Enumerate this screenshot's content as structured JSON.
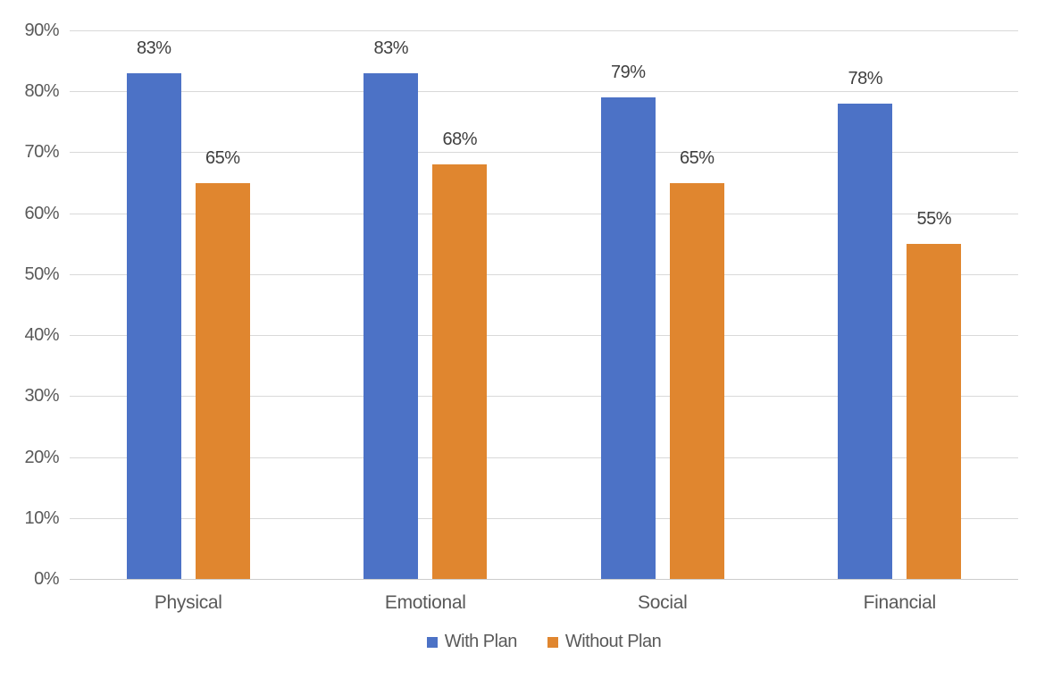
{
  "chart_data": {
    "type": "bar",
    "title": "",
    "xlabel": "",
    "ylabel": "",
    "categories": [
      "Physical",
      "Emotional",
      "Social",
      "Financial"
    ],
    "series": [
      {
        "name": "With Plan",
        "color": "#4C72C6",
        "values": [
          83,
          83,
          79,
          78
        ]
      },
      {
        "name": "Without Plan",
        "color": "#E0862F",
        "values": [
          65,
          68,
          65,
          55
        ]
      }
    ],
    "data_labels": [
      [
        "83%",
        "65%"
      ],
      [
        "83%",
        "68%"
      ],
      [
        "79%",
        "65%"
      ],
      [
        "78%",
        "55%"
      ]
    ],
    "value_suffix": "%",
    "ylim": [
      0,
      90
    ],
    "yticks": [
      0,
      10,
      20,
      30,
      40,
      50,
      60,
      70,
      80,
      90
    ],
    "ytick_labels": [
      "0%",
      "10%",
      "20%",
      "30%",
      "40%",
      "50%",
      "60%",
      "70%",
      "80%",
      "90%"
    ],
    "grid": true,
    "legend_position": "bottom"
  },
  "colors": {
    "with_plan": "#4C72C6",
    "without_plan": "#E0862F",
    "gridline": "#D9D9D9",
    "axis_line": "#CCCCCC",
    "tick_label": "#595959",
    "category_label": "#595959",
    "data_label": "#3F3F3F",
    "legend_text": "#595959",
    "background": "#FFFFFF"
  }
}
